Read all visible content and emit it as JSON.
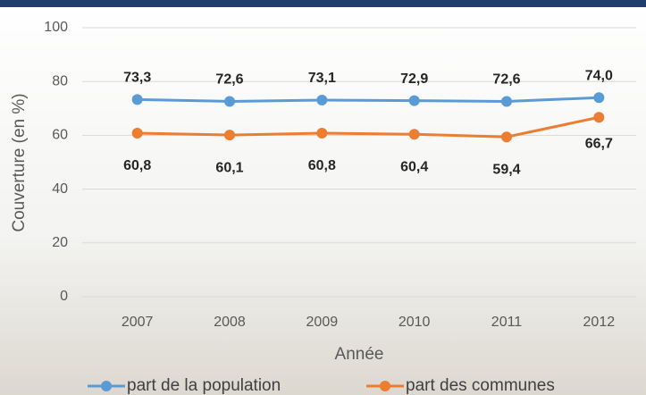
{
  "chart_data": {
    "type": "line",
    "categories": [
      "2007",
      "2008",
      "2009",
      "2010",
      "2011",
      "2012"
    ],
    "series": [
      {
        "name": "part de la population",
        "color": "#5b9bd5",
        "values": [
          73.3,
          72.6,
          73.1,
          72.9,
          72.6,
          74.0
        ],
        "value_labels": [
          "73,3",
          "72,6",
          "73,1",
          "72,9",
          "72,6",
          "74,0"
        ]
      },
      {
        "name": "part des communes",
        "color": "#ed7d31",
        "values": [
          60.8,
          60.1,
          60.8,
          60.4,
          59.4,
          66.7
        ],
        "value_labels": [
          "60,8",
          "60,1",
          "60,8",
          "60,4",
          "59,4",
          "66,7"
        ]
      }
    ],
    "ylim": [
      0,
      100
    ],
    "yticks": [
      0,
      20,
      40,
      60,
      80,
      100
    ],
    "grid": true,
    "y_label": "Couverture (en %)",
    "x_label": "Année",
    "legend": "bottom"
  }
}
